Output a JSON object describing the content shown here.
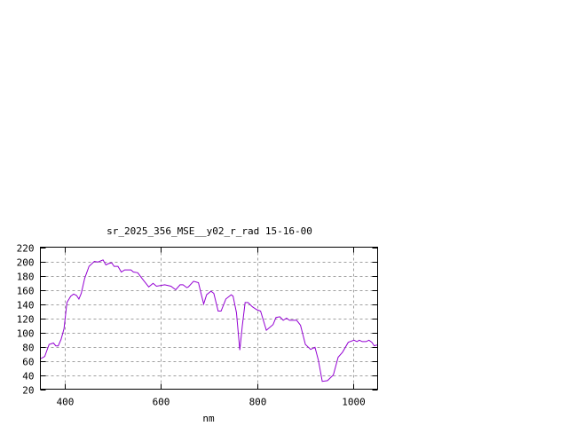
{
  "chart_data": {
    "type": "line",
    "title": "sr_2025_356_MSE__y02_r_rad 15-16-00",
    "xlabel": "nm",
    "ylabel": "",
    "xlim": [
      350,
      1050
    ],
    "ylim": [
      20,
      220
    ],
    "xticks": [
      400,
      600,
      800,
      1000
    ],
    "yticks": [
      20,
      40,
      60,
      80,
      100,
      120,
      140,
      160,
      180,
      200,
      220
    ],
    "grid": true,
    "line_color": "#9400d3",
    "series": [
      {
        "x": [
          351,
          359,
          368,
          377,
          382,
          387,
          393,
          399,
          405,
          413,
          419,
          425,
          430,
          435,
          442,
          451,
          462,
          469,
          480,
          486,
          492,
          498,
          503,
          511,
          518,
          525,
          538,
          543,
          552,
          561,
          575,
          584,
          591,
          608,
          621,
          631,
          640,
          646,
          654,
          657,
          668,
          678,
          683,
          689,
          695,
          704,
          710,
          719,
          725,
          735,
          746,
          750,
          757,
          764,
          769,
          775,
          781,
          790,
          799,
          807,
          819,
          833,
          839,
          847,
          854,
          861,
          867,
          882,
          890,
          900,
          911,
          920,
          927,
          935,
          946,
          958,
          968,
          977,
          989,
          1001,
          1007,
          1012,
          1018,
          1026,
          1032,
          1038,
          1043,
          1047,
          1050
        ],
        "y": [
          63,
          66,
          83,
          85,
          81,
          81,
          90,
          105,
          142,
          151,
          154,
          152,
          147,
          155,
          176,
          193,
          200,
          199,
          202,
          195,
          197,
          198,
          193,
          193,
          185,
          188,
          188,
          185,
          184,
          176,
          164,
          169,
          165,
          167,
          165,
          160,
          167,
          167,
          163,
          164,
          172,
          170,
          156,
          140,
          153,
          158,
          155,
          130,
          130,
          147,
          153,
          151,
          128,
          75,
          109,
          142,
          142,
          136,
          132,
          130,
          103,
          111,
          121,
          122,
          117,
          120,
          117,
          117,
          110,
          83,
          76,
          79,
          61,
          31,
          32,
          40,
          65,
          72,
          86,
          89,
          87,
          89,
          87,
          87,
          89,
          86,
          81,
          82,
          82
        ]
      }
    ]
  }
}
